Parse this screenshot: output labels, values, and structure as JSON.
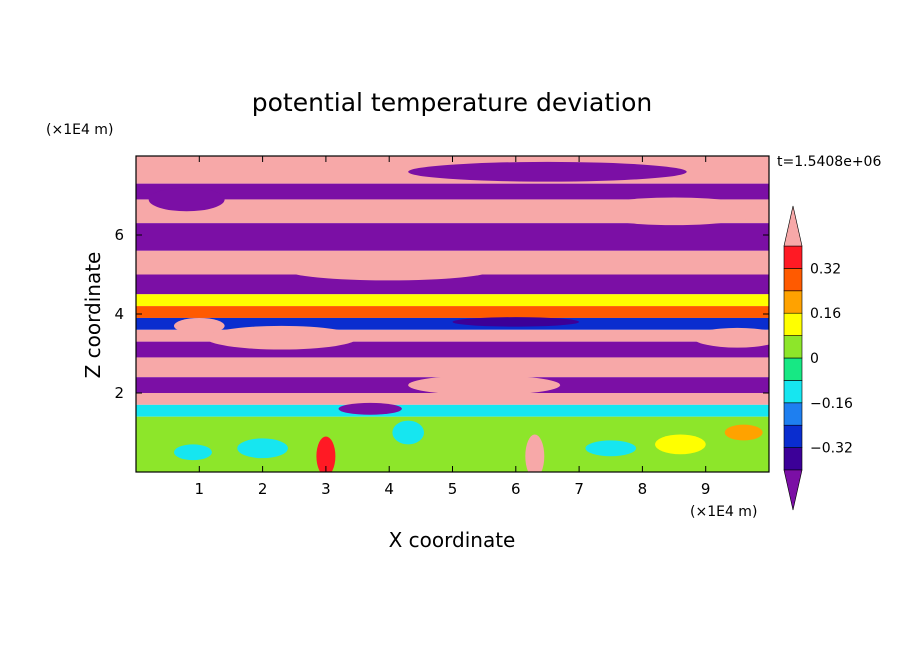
{
  "chart_data": {
    "type": "heatmap",
    "title": "potential temperature deviation",
    "xlabel": "X coordinate",
    "ylabel": "Z coordinate",
    "x_unit": "(×1E4 m)",
    "y_unit": "(×1E4 m)",
    "time_label": "t=1.5408e+06",
    "xlim": [
      0,
      10
    ],
    "ylim": [
      0,
      8
    ],
    "x_ticks": [
      1,
      2,
      3,
      4,
      5,
      6,
      7,
      8,
      9
    ],
    "y_ticks": [
      2,
      4,
      6
    ],
    "grid": false,
    "colorbar": {
      "levels": [
        -0.4,
        -0.32,
        -0.24,
        -0.16,
        -0.08,
        0,
        0.08,
        0.16,
        0.24,
        0.32,
        0.4
      ],
      "tick_labels": [
        {
          "value": -0.32,
          "label": "−0.32"
        },
        {
          "value": -0.16,
          "label": "−0.16"
        },
        {
          "value": 0,
          "label": "0"
        },
        {
          "value": 0.16,
          "label": "0.16"
        },
        {
          "value": 0.32,
          "label": "0.32"
        }
      ],
      "colors": [
        "#7b0fa5",
        "#3c0098",
        "#0a2dcf",
        "#1e7ff0",
        "#16e6f0",
        "#17e884",
        "#8de62a",
        "#ffff00",
        "#ffa200",
        "#ff5a00",
        "#ff1a24",
        "#f7a8a8"
      ],
      "extend": "both"
    },
    "field_bands": [
      {
        "z": [
          7.3,
          8.0
        ],
        "value": 0.45
      },
      {
        "z": [
          6.9,
          7.3
        ],
        "value": -0.45
      },
      {
        "z": [
          6.3,
          6.9
        ],
        "value": 0.45
      },
      {
        "z": [
          5.6,
          6.3
        ],
        "value": -0.45
      },
      {
        "z": [
          5.0,
          5.6
        ],
        "value": 0.45
      },
      {
        "z": [
          4.5,
          5.0
        ],
        "value": -0.45
      },
      {
        "z": [
          4.2,
          4.5
        ],
        "value": 0.1
      },
      {
        "z": [
          3.9,
          4.2
        ],
        "value": 0.3
      },
      {
        "z": [
          3.6,
          3.9
        ],
        "value": -0.3
      },
      {
        "z": [
          3.3,
          3.6
        ],
        "value": 0.45
      },
      {
        "z": [
          2.9,
          3.3
        ],
        "value": -0.45
      },
      {
        "z": [
          2.4,
          2.9
        ],
        "value": 0.45
      },
      {
        "z": [
          2.0,
          2.4
        ],
        "value": -0.45
      },
      {
        "z": [
          1.7,
          2.0
        ],
        "value": 0.45
      },
      {
        "z": [
          1.4,
          1.7
        ],
        "value": -0.12
      },
      {
        "z": [
          0.0,
          1.4
        ],
        "value": 0.05
      }
    ],
    "field_blobs": [
      {
        "x": 0.8,
        "z": 6.9,
        "rx": 0.6,
        "rz": 0.3,
        "value": -0.45
      },
      {
        "x": 6.5,
        "z": 7.6,
        "rx": 2.2,
        "rz": 0.25,
        "value": -0.45
      },
      {
        "x": 8.5,
        "z": 6.6,
        "rx": 1.4,
        "rz": 0.35,
        "value": 0.45
      },
      {
        "x": 4.0,
        "z": 5.1,
        "rx": 1.6,
        "rz": 0.25,
        "value": 0.45
      },
      {
        "x": 2.3,
        "z": 3.4,
        "rx": 1.2,
        "rz": 0.3,
        "value": 0.45
      },
      {
        "x": 6.0,
        "z": 3.8,
        "rx": 1.0,
        "rz": 0.12,
        "value": -0.35
      },
      {
        "x": 9.5,
        "z": 3.4,
        "rx": 0.7,
        "rz": 0.25,
        "value": 0.45
      },
      {
        "x": 5.5,
        "z": 2.2,
        "rx": 1.2,
        "rz": 0.25,
        "value": 0.45
      },
      {
        "x": 1.0,
        "z": 3.7,
        "rx": 0.4,
        "rz": 0.2,
        "value": 0.4
      },
      {
        "x": 0.9,
        "z": 0.5,
        "rx": 0.3,
        "rz": 0.2,
        "value": -0.1
      },
      {
        "x": 2.0,
        "z": 0.6,
        "rx": 0.4,
        "rz": 0.25,
        "value": -0.1
      },
      {
        "x": 3.0,
        "z": 0.4,
        "rx": 0.15,
        "rz": 0.5,
        "value": 0.35
      },
      {
        "x": 4.3,
        "z": 1.0,
        "rx": 0.25,
        "rz": 0.3,
        "value": -0.1
      },
      {
        "x": 6.3,
        "z": 0.4,
        "rx": 0.15,
        "rz": 0.55,
        "value": 0.4
      },
      {
        "x": 7.5,
        "z": 0.6,
        "rx": 0.4,
        "rz": 0.2,
        "value": -0.1
      },
      {
        "x": 8.6,
        "z": 0.7,
        "rx": 0.4,
        "rz": 0.25,
        "value": 0.1
      },
      {
        "x": 9.6,
        "z": 1.0,
        "rx": 0.3,
        "rz": 0.2,
        "value": 0.2
      },
      {
        "x": 3.7,
        "z": 1.6,
        "rx": 0.5,
        "rz": 0.15,
        "value": -0.45
      }
    ]
  }
}
